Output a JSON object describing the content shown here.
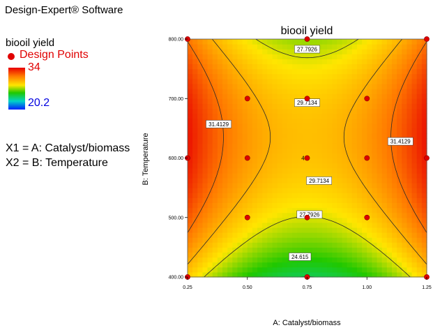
{
  "header": {
    "software": "Design-Expert® Software"
  },
  "legend": {
    "response_name": "biooil yield",
    "design_points_label": "Design Points",
    "high_value": "34",
    "low_value": "20.2",
    "colors": {
      "high": "#e00000",
      "low": "#0000e0",
      "design_point": "#e00000"
    }
  },
  "factors": {
    "x1": "X1 = A: Catalyst/biomass",
    "x2": "X2 = B: Temperature"
  },
  "chart_data": {
    "type": "heatmap",
    "title": "biooil yield",
    "xlabel": "A: Catalyst/biomass",
    "ylabel": "B: Temperature",
    "xlim": [
      0.25,
      1.25
    ],
    "ylim": [
      400,
      800
    ],
    "x_ticks": [
      "0.25",
      "0.50",
      "0.75",
      "1.00",
      "1.25"
    ],
    "y_ticks": [
      "400.00",
      "500.00",
      "600.00",
      "700.00",
      "800.00"
    ],
    "color_range": [
      20.2,
      34
    ],
    "contours": [
      {
        "level": 24.615,
        "label": "24.615"
      },
      {
        "level": 27.7926,
        "label": "27.7926"
      },
      {
        "level": 29.7134,
        "label": "29.7134"
      },
      {
        "level": 31.4129,
        "label": "31.4129"
      }
    ],
    "contour_labels": [
      {
        "text": "27.7926",
        "x": 0.75,
        "y": 783
      },
      {
        "text": "29.7134",
        "x": 0.75,
        "y": 693
      },
      {
        "text": "31.4129",
        "x": 0.38,
        "y": 657
      },
      {
        "text": "31.4129",
        "x": 1.14,
        "y": 628
      },
      {
        "text": "29.7134",
        "x": 0.8,
        "y": 562
      },
      {
        "text": "27.7926",
        "x": 0.76,
        "y": 505
      },
      {
        "text": "24.615",
        "x": 0.72,
        "y": 434
      }
    ],
    "design_points": [
      {
        "x": 0.25,
        "y": 400
      },
      {
        "x": 0.75,
        "y": 400
      },
      {
        "x": 1.25,
        "y": 400
      },
      {
        "x": 0.5,
        "y": 500
      },
      {
        "x": 0.75,
        "y": 500
      },
      {
        "x": 1.0,
        "y": 500
      },
      {
        "x": 0.25,
        "y": 600
      },
      {
        "x": 0.5,
        "y": 600
      },
      {
        "x": 0.75,
        "y": 600
      },
      {
        "x": 1.0,
        "y": 600
      },
      {
        "x": 1.25,
        "y": 600
      },
      {
        "x": 0.5,
        "y": 700
      },
      {
        "x": 0.75,
        "y": 700
      },
      {
        "x": 1.0,
        "y": 700
      },
      {
        "x": 0.25,
        "y": 800
      },
      {
        "x": 0.75,
        "y": 800
      },
      {
        "x": 1.25,
        "y": 800
      }
    ],
    "point_annotations": [
      {
        "x": 0.75,
        "y": 600,
        "text": "4"
      }
    ]
  }
}
